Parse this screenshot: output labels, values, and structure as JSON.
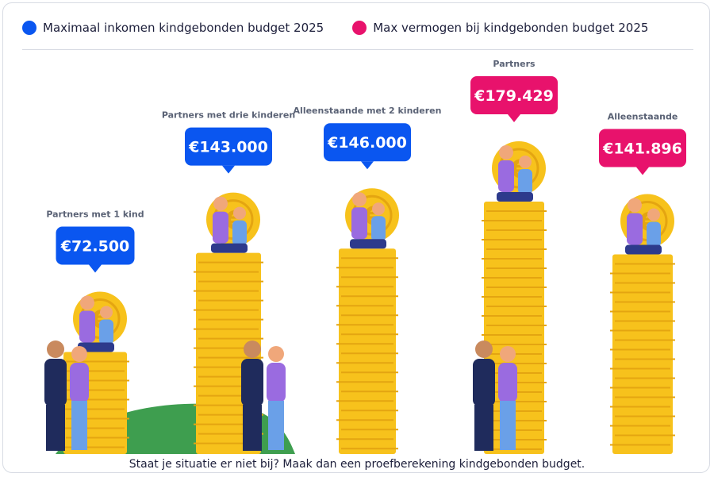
{
  "legend": {
    "income_label": "Maximaal inkomen kindgebonden budget 2025",
    "wealth_label": "Max vermogen bij kindgebonden budget 2025"
  },
  "colors": {
    "income": "#0a56f0",
    "wealth": "#e8126c",
    "coin": "#f7c21c",
    "coin_edge": "#e4a511",
    "hill": "#3e9e4f",
    "ink": "#1d1f3b",
    "label": "#5a6275"
  },
  "footer": {
    "text": "Staat je situatie er niet bij? Maak dan een proefberekening kindgebonden budget."
  },
  "chart_data": {
    "type": "bar",
    "categories": [
      "Partners met 1 kind",
      "Partners met drie kinderen",
      "Alleenstaande met 2 kinderen",
      "Partners",
      "Alleenstaande"
    ],
    "bars": [
      {
        "category": "Partners met 1 kind",
        "value": 72500,
        "label": "€72.500",
        "series": "income"
      },
      {
        "category": "Partners met drie kinderen",
        "value": 143000,
        "label": "€143.000",
        "series": "income"
      },
      {
        "category": "Alleenstaande met 2 kinderen",
        "value": 146000,
        "label": "€146.000",
        "series": "income"
      },
      {
        "category": "Partners",
        "value": 179429,
        "label": "€179.429",
        "series": "wealth"
      },
      {
        "category": "Alleenstaande",
        "value": 141896,
        "label": "€141.896",
        "series": "wealth"
      }
    ],
    "series": [
      {
        "name": "Maximaal inkomen kindgebonden budget 2025",
        "key": "income"
      },
      {
        "name": "Max vermogen bij kindgebonden budget 2025",
        "key": "wealth"
      }
    ],
    "legend_position": "top-left",
    "grid": false
  }
}
